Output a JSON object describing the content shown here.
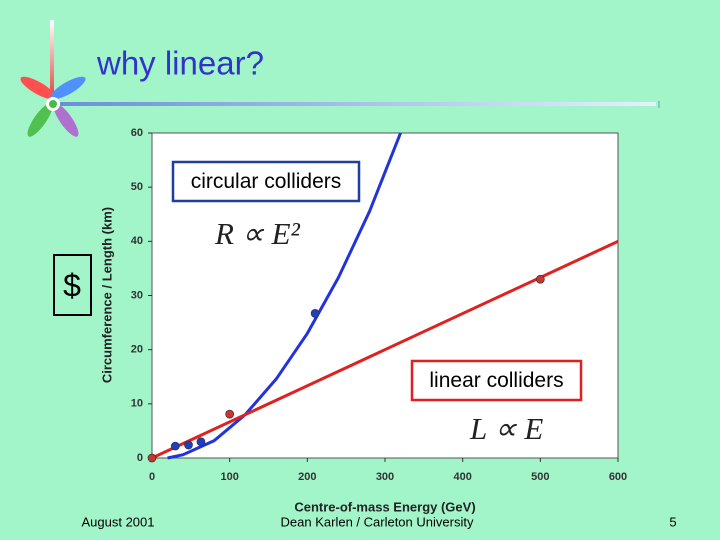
{
  "slide": {
    "title": "why linear?",
    "footer_left": "August 2001",
    "footer_center": "Dean Karlen / Carleton University",
    "page_number": "5",
    "side_label": "$"
  },
  "chart_data": {
    "type": "line",
    "xlabel": "Centre-of-mass Energy (GeV)",
    "ylabel": "Circumference / Length (km)",
    "xlim": [
      0,
      600
    ],
    "xticks": [
      0,
      100,
      200,
      300,
      400,
      500,
      600
    ],
    "ylim": [
      0,
      60
    ],
    "yticks": [
      0,
      10,
      20,
      30,
      40,
      50,
      60
    ],
    "annotations": [
      {
        "text": "circular colliders",
        "formula": "R ∝ E²",
        "color": "#1f3f9f"
      },
      {
        "text": "linear colliders",
        "formula": "L ∝ E",
        "color": "#e02020"
      }
    ],
    "series": [
      {
        "style": "line",
        "color": "#2233dd",
        "x": [
          20,
          40,
          80,
          120,
          160,
          200,
          240,
          280,
          320
        ],
        "values": [
          0,
          0.6,
          3.2,
          8,
          14.6,
          23,
          33.3,
          45.5,
          60
        ]
      },
      {
        "style": "line",
        "color": "#dd2222",
        "x": [
          0,
          600
        ],
        "values": [
          0,
          40
        ]
      },
      {
        "style": "points",
        "color": "#1f3fbf",
        "x": [
          30,
          47,
          63,
          210
        ],
        "values": [
          2.2,
          2.4,
          3,
          26.7
        ]
      },
      {
        "style": "points",
        "color": "#cc3333",
        "x": [
          0,
          100,
          500
        ],
        "values": [
          0,
          8.1,
          33
        ]
      }
    ]
  }
}
